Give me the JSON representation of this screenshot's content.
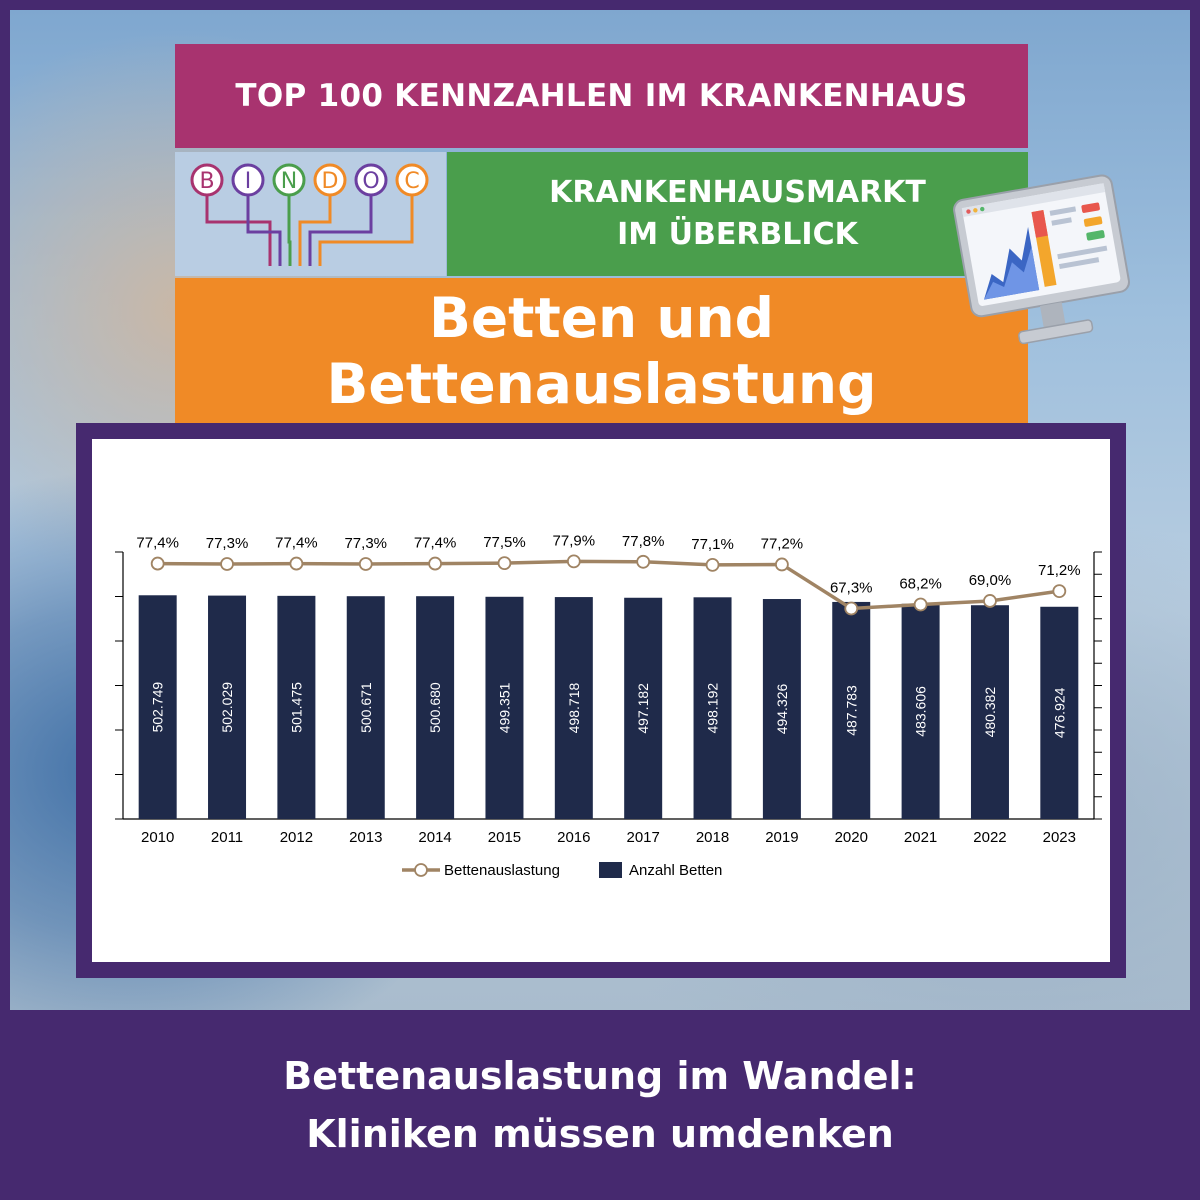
{
  "header": {
    "top_title": "TOP 100 KENNZAHLEN IM KRANKENHAUS",
    "logo_letters": [
      "B",
      "I",
      "N",
      "D",
      "O",
      "C"
    ],
    "logo_colors": [
      "#a8336f",
      "#6b3fa0",
      "#4a9e4c",
      "#f08a26",
      "#6b3fa0",
      "#f08a26"
    ],
    "subtitle_line1": "KRANKENHAUSMARKT",
    "subtitle_line2": "IM ÜBERBLICK",
    "title_line1": "Betten und",
    "title_line2": "Bettenauslastung"
  },
  "colors": {
    "purple_band": "#a8336f",
    "green_band": "#4a9e4c",
    "orange_band": "#f08a26",
    "frame": "#46296f",
    "bar": "#1f2a4a",
    "line": "#a08464"
  },
  "chart_data": {
    "type": "bar",
    "categories": [
      "2010",
      "2011",
      "2012",
      "2013",
      "2014",
      "2015",
      "2016",
      "2017",
      "2018",
      "2019",
      "2020",
      "2021",
      "2022",
      "2023"
    ],
    "series": [
      {
        "name": "Anzahl Betten",
        "type": "bar",
        "values": [
          502749,
          502029,
          501475,
          500671,
          500680,
          499351,
          498718,
          497182,
          498192,
          494326,
          487783,
          483606,
          480382,
          476924
        ],
        "labels": [
          "502.749",
          "502.029",
          "501.475",
          "500.671",
          "500.680",
          "499.351",
          "498.718",
          "497.182",
          "498.192",
          "494.326",
          "487.783",
          "483.606",
          "480.382",
          "476.924"
        ]
      },
      {
        "name": "Bettenauslastung",
        "type": "line",
        "values": [
          77.4,
          77.3,
          77.4,
          77.3,
          77.4,
          77.5,
          77.9,
          77.8,
          77.1,
          77.2,
          67.3,
          68.2,
          69.0,
          71.2
        ],
        "labels": [
          "77,4%",
          "77,3%",
          "77,4%",
          "77,3%",
          "77,4%",
          "77,5%",
          "77,9%",
          "77,8%",
          "77,1%",
          "77,2%",
          "67,3%",
          "68,2%",
          "69,0%",
          "71,2%"
        ]
      }
    ],
    "bar_axis_range": [
      0,
      600000
    ],
    "line_axis_range": [
      20,
      80
    ],
    "legend_position": "bottom",
    "grid": false
  },
  "footer": {
    "line1": "Bettenauslastung im Wandel:",
    "line2": "Kliniken müssen umdenken"
  }
}
